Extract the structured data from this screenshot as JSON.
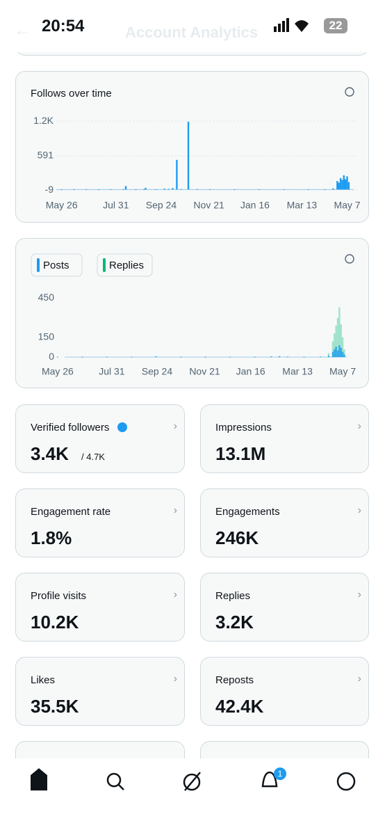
{
  "status": {
    "time": "20:54",
    "battery": "22"
  },
  "header": {
    "title": "Account Analytics"
  },
  "chart_data": [
    {
      "type": "bar",
      "title": "Follows over time",
      "color": "#1d9bf0",
      "x": [
        0,
        15,
        30,
        45,
        60,
        75,
        78,
        90,
        100,
        102,
        115,
        125,
        130,
        135,
        140,
        145,
        154,
        165,
        180,
        210,
        240,
        270,
        300,
        320,
        330,
        335,
        337,
        339,
        341,
        343,
        345,
        347,
        349
      ],
      "values": [
        3,
        2,
        4,
        3,
        2,
        5,
        60,
        4,
        6,
        30,
        5,
        15,
        12,
        25,
        520,
        8,
        1190,
        6,
        4,
        3,
        2,
        3,
        4,
        3,
        20,
        150,
        120,
        200,
        170,
        250,
        180,
        230,
        130
      ],
      "xlim": [
        -20,
        355
      ],
      "xticks": [
        {
          "value": 0,
          "label": "May 26"
        },
        {
          "value": 66,
          "label": "Jul 31"
        },
        {
          "value": 121,
          "label": "Sep 24"
        },
        {
          "value": 179,
          "label": "Nov 21"
        },
        {
          "value": 235,
          "label": "Jan 16"
        },
        {
          "value": 292,
          "label": "Mar 13"
        },
        {
          "value": 347,
          "label": "May 7"
        }
      ],
      "ylim": [
        -45,
        1300
      ],
      "yticks": [
        {
          "value": 1200,
          "label": "1.2K"
        },
        591,
        -9
      ],
      "grid": true
    },
    {
      "type": "bar",
      "x": [
        0,
        30,
        60,
        90,
        120,
        150,
        180,
        210,
        240,
        260,
        270,
        280,
        300,
        320,
        330,
        335,
        337,
        339,
        341,
        343,
        345,
        347,
        349
      ],
      "series": [
        {
          "name": "Posts",
          "color": "#1d9bf0",
          "values": [
            2,
            1,
            3,
            2,
            6,
            2,
            1,
            2,
            2,
            5,
            6,
            4,
            2,
            3,
            10,
            40,
            60,
            80,
            50,
            90,
            70,
            40,
            20
          ]
        },
        {
          "name": "Replies",
          "color": "#00ba7c",
          "values": [
            1,
            1,
            2,
            1,
            4,
            1,
            1,
            1,
            1,
            6,
            8,
            3,
            2,
            4,
            30,
            120,
            180,
            240,
            300,
            380,
            250,
            150,
            60
          ]
        }
      ],
      "xlim": [
        -5,
        352
      ],
      "xticks": [
        {
          "value": 0,
          "label": "May 26"
        },
        {
          "value": 66,
          "label": "Jul 31"
        },
        {
          "value": 121,
          "label": "Sep 24"
        },
        {
          "value": 179,
          "label": "Nov 21"
        },
        {
          "value": 235,
          "label": "Jan 16"
        },
        {
          "value": 292,
          "label": "Mar 13"
        },
        {
          "value": 347,
          "label": "May 7"
        }
      ],
      "ylim": [
        -10,
        500
      ],
      "yticks": [
        450,
        150,
        0
      ],
      "grid": false
    }
  ],
  "metrics": [
    {
      "label": "Verified followers",
      "value": "3.4K",
      "total": "/ 4.7K"
    },
    {
      "label": "Impressions",
      "value": "13.1M"
    },
    {
      "label": "Engagement rate",
      "value": "1.8%"
    },
    {
      "label": "Engagements",
      "value": "246K"
    },
    {
      "label": "Profile visits",
      "value": "10.2K"
    },
    {
      "label": "Replies",
      "value": "3.2K"
    },
    {
      "label": "Likes",
      "value": "35.5K"
    },
    {
      "label": "Reposts",
      "value": "42.4K"
    }
  ],
  "nav": {
    "badge": "1"
  }
}
